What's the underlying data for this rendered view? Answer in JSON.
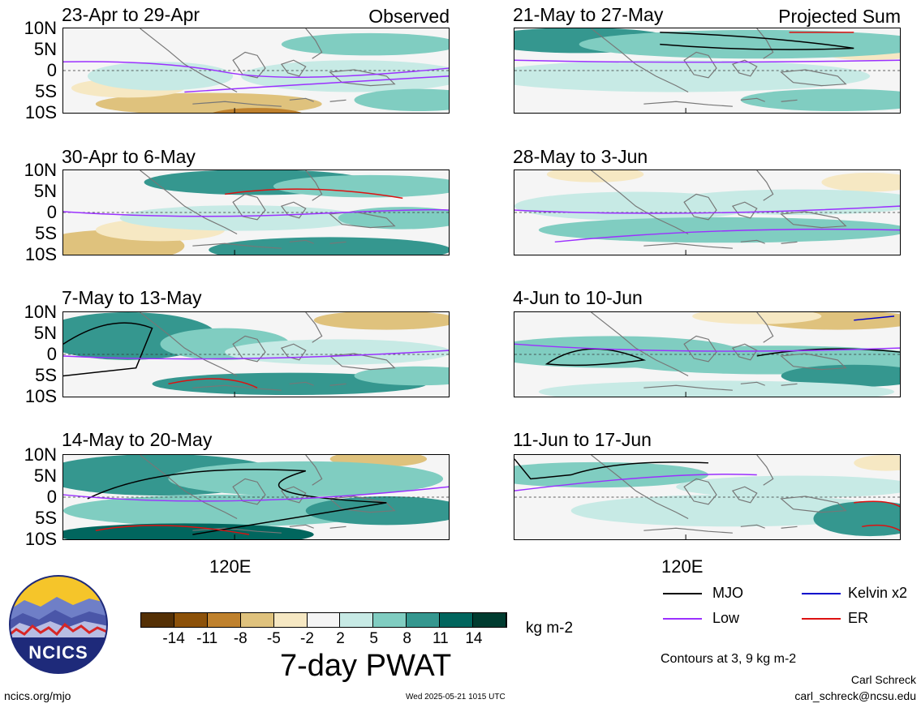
{
  "panels": {
    "left": [
      {
        "title": "23-Apr to 29-Apr",
        "tag": "Observed"
      },
      {
        "title": "30-Apr to 6-May",
        "tag": ""
      },
      {
        "title": "7-May to 13-May",
        "tag": ""
      },
      {
        "title": "14-May to 20-May",
        "tag": ""
      }
    ],
    "right": [
      {
        "title": "21-May to 27-May",
        "tag": "Projected Sum"
      },
      {
        "title": "28-May to 3-Jun",
        "tag": ""
      },
      {
        "title": "4-Jun to 10-Jun",
        "tag": ""
      },
      {
        "title": "11-Jun to 17-Jun",
        "tag": ""
      }
    ]
  },
  "lat_labels": [
    "10N",
    "5N",
    "0",
    "5S",
    "10S"
  ],
  "lon_label": "120E",
  "colorbar": {
    "ticks": [
      "-14",
      "-11",
      "-8",
      "-5",
      "-2",
      "2",
      "5",
      "8",
      "11",
      "14"
    ],
    "colors": [
      "#543005",
      "#8c5109",
      "#bf812d",
      "#dfc27d",
      "#f6e8c3",
      "#f5f5f5",
      "#c7eae5",
      "#80cdc1",
      "#35978f",
      "#01665e",
      "#003c30"
    ],
    "units": "kg m-2",
    "title": "7-day PWAT"
  },
  "legend": {
    "items": [
      {
        "label": "MJO",
        "color": "#000000"
      },
      {
        "label": "Kelvin x2",
        "color": "#0000cc"
      },
      {
        "label": "Low",
        "color": "#9b30ff"
      },
      {
        "label": "ER",
        "color": "#dd1111"
      }
    ],
    "contours": "Contours at 3, 9 kg m-2"
  },
  "logo": {
    "text": "NCICS"
  },
  "footer": {
    "left": "ncics.org/mjo",
    "center": "Wed 2025-05-21 1015 UTC",
    "author": "Carl Schreck",
    "email": "carl_schreck@ncsu.edu"
  }
}
